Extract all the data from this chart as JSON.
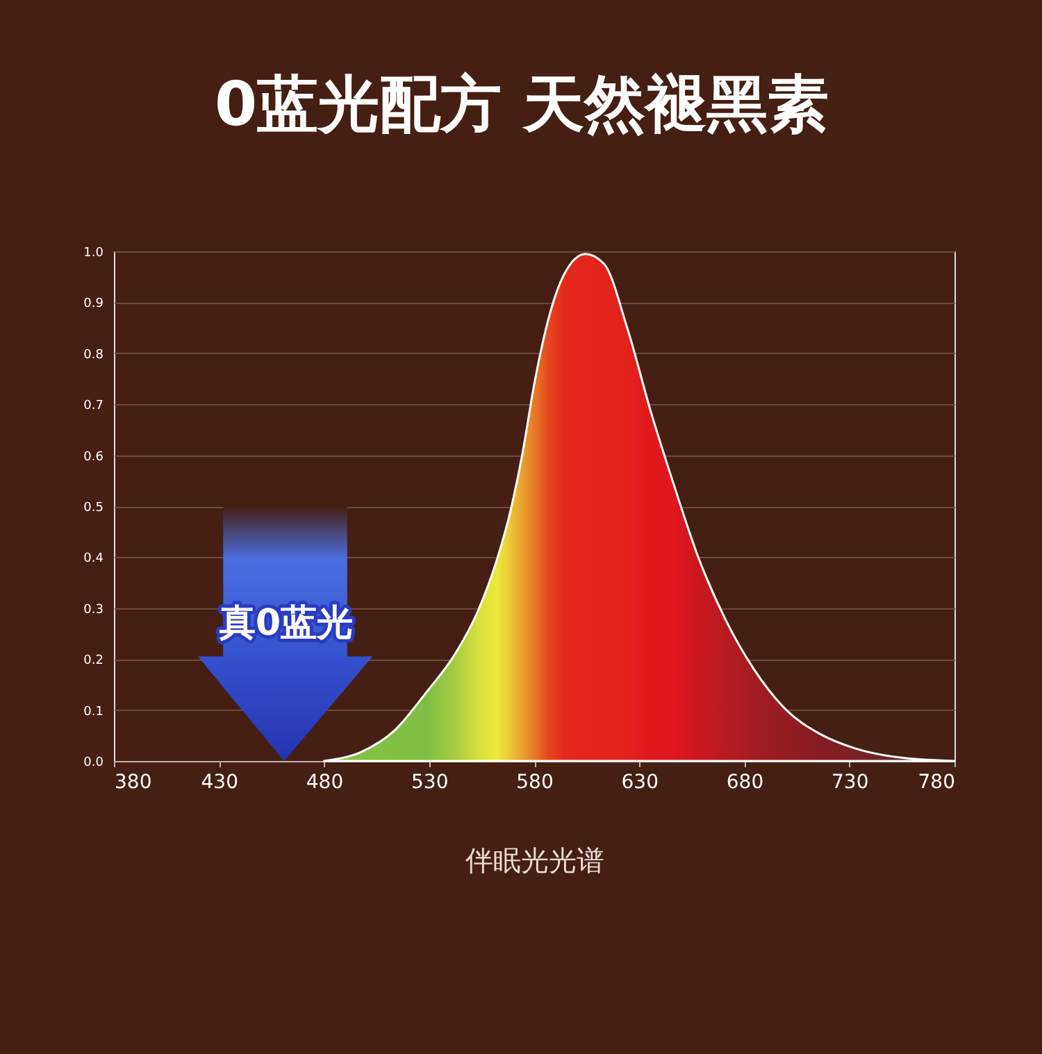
{
  "chart_data": {
    "type": "area",
    "title": "0蓝光配方 天然褪黑素",
    "xlabel": "伴眠光光谱",
    "annotations": [
      "真0蓝光"
    ],
    "xlim": [
      380,
      780
    ],
    "xticks": [
      380,
      430,
      480,
      530,
      580,
      630,
      680,
      730,
      780
    ],
    "ylim": [
      0,
      1.0
    ],
    "yticks": [
      {
        "value": 0,
        "label": "0.0"
      },
      0.1,
      0.2,
      0.3,
      0.4,
      0.5,
      0.6,
      0.7,
      0.8,
      0.9,
      {
        "value": 1,
        "label": "1.0"
      }
    ],
    "grid": "y",
    "series": [
      {
        "colors": [
          "#8bc541",
          "#84c242",
          "#7fc044",
          "#7dbf44",
          "#a6cc40",
          "#d5e03c",
          "#ece83a",
          "#ecc535",
          "#e9a02e",
          "#e77a27",
          "#e5481f",
          "#e3291b",
          "#e3261b",
          "#e3241c",
          "#e3221c",
          "#e1191d",
          "#e0171d",
          "#cc191f",
          "#b81b21",
          "#a31b22",
          "#951b22",
          "#861d24",
          "#7a2026",
          "#6a2524",
          "#5a2420"
        ],
        "x": [
          480,
          497.8,
          513.3,
          528.9,
          542.2,
          553.3,
          562.2,
          568.9,
          574.4,
          580,
          586.7,
          594.4,
          604.4,
          613.3,
          624.4,
          635.6,
          646.7,
          657.8,
          671.1,
          684.4,
          700,
          715.6,
          733.3,
          755.6,
          780
        ],
        "values": [
          0,
          0.018,
          0.059,
          0.136,
          0.209,
          0.295,
          0.394,
          0.494,
          0.603,
          0.739,
          0.866,
          0.956,
          0.995,
          0.975,
          0.848,
          0.684,
          0.539,
          0.403,
          0.277,
          0.181,
          0.1,
          0.054,
          0.024,
          0.006,
          0
        ]
      }
    ]
  }
}
